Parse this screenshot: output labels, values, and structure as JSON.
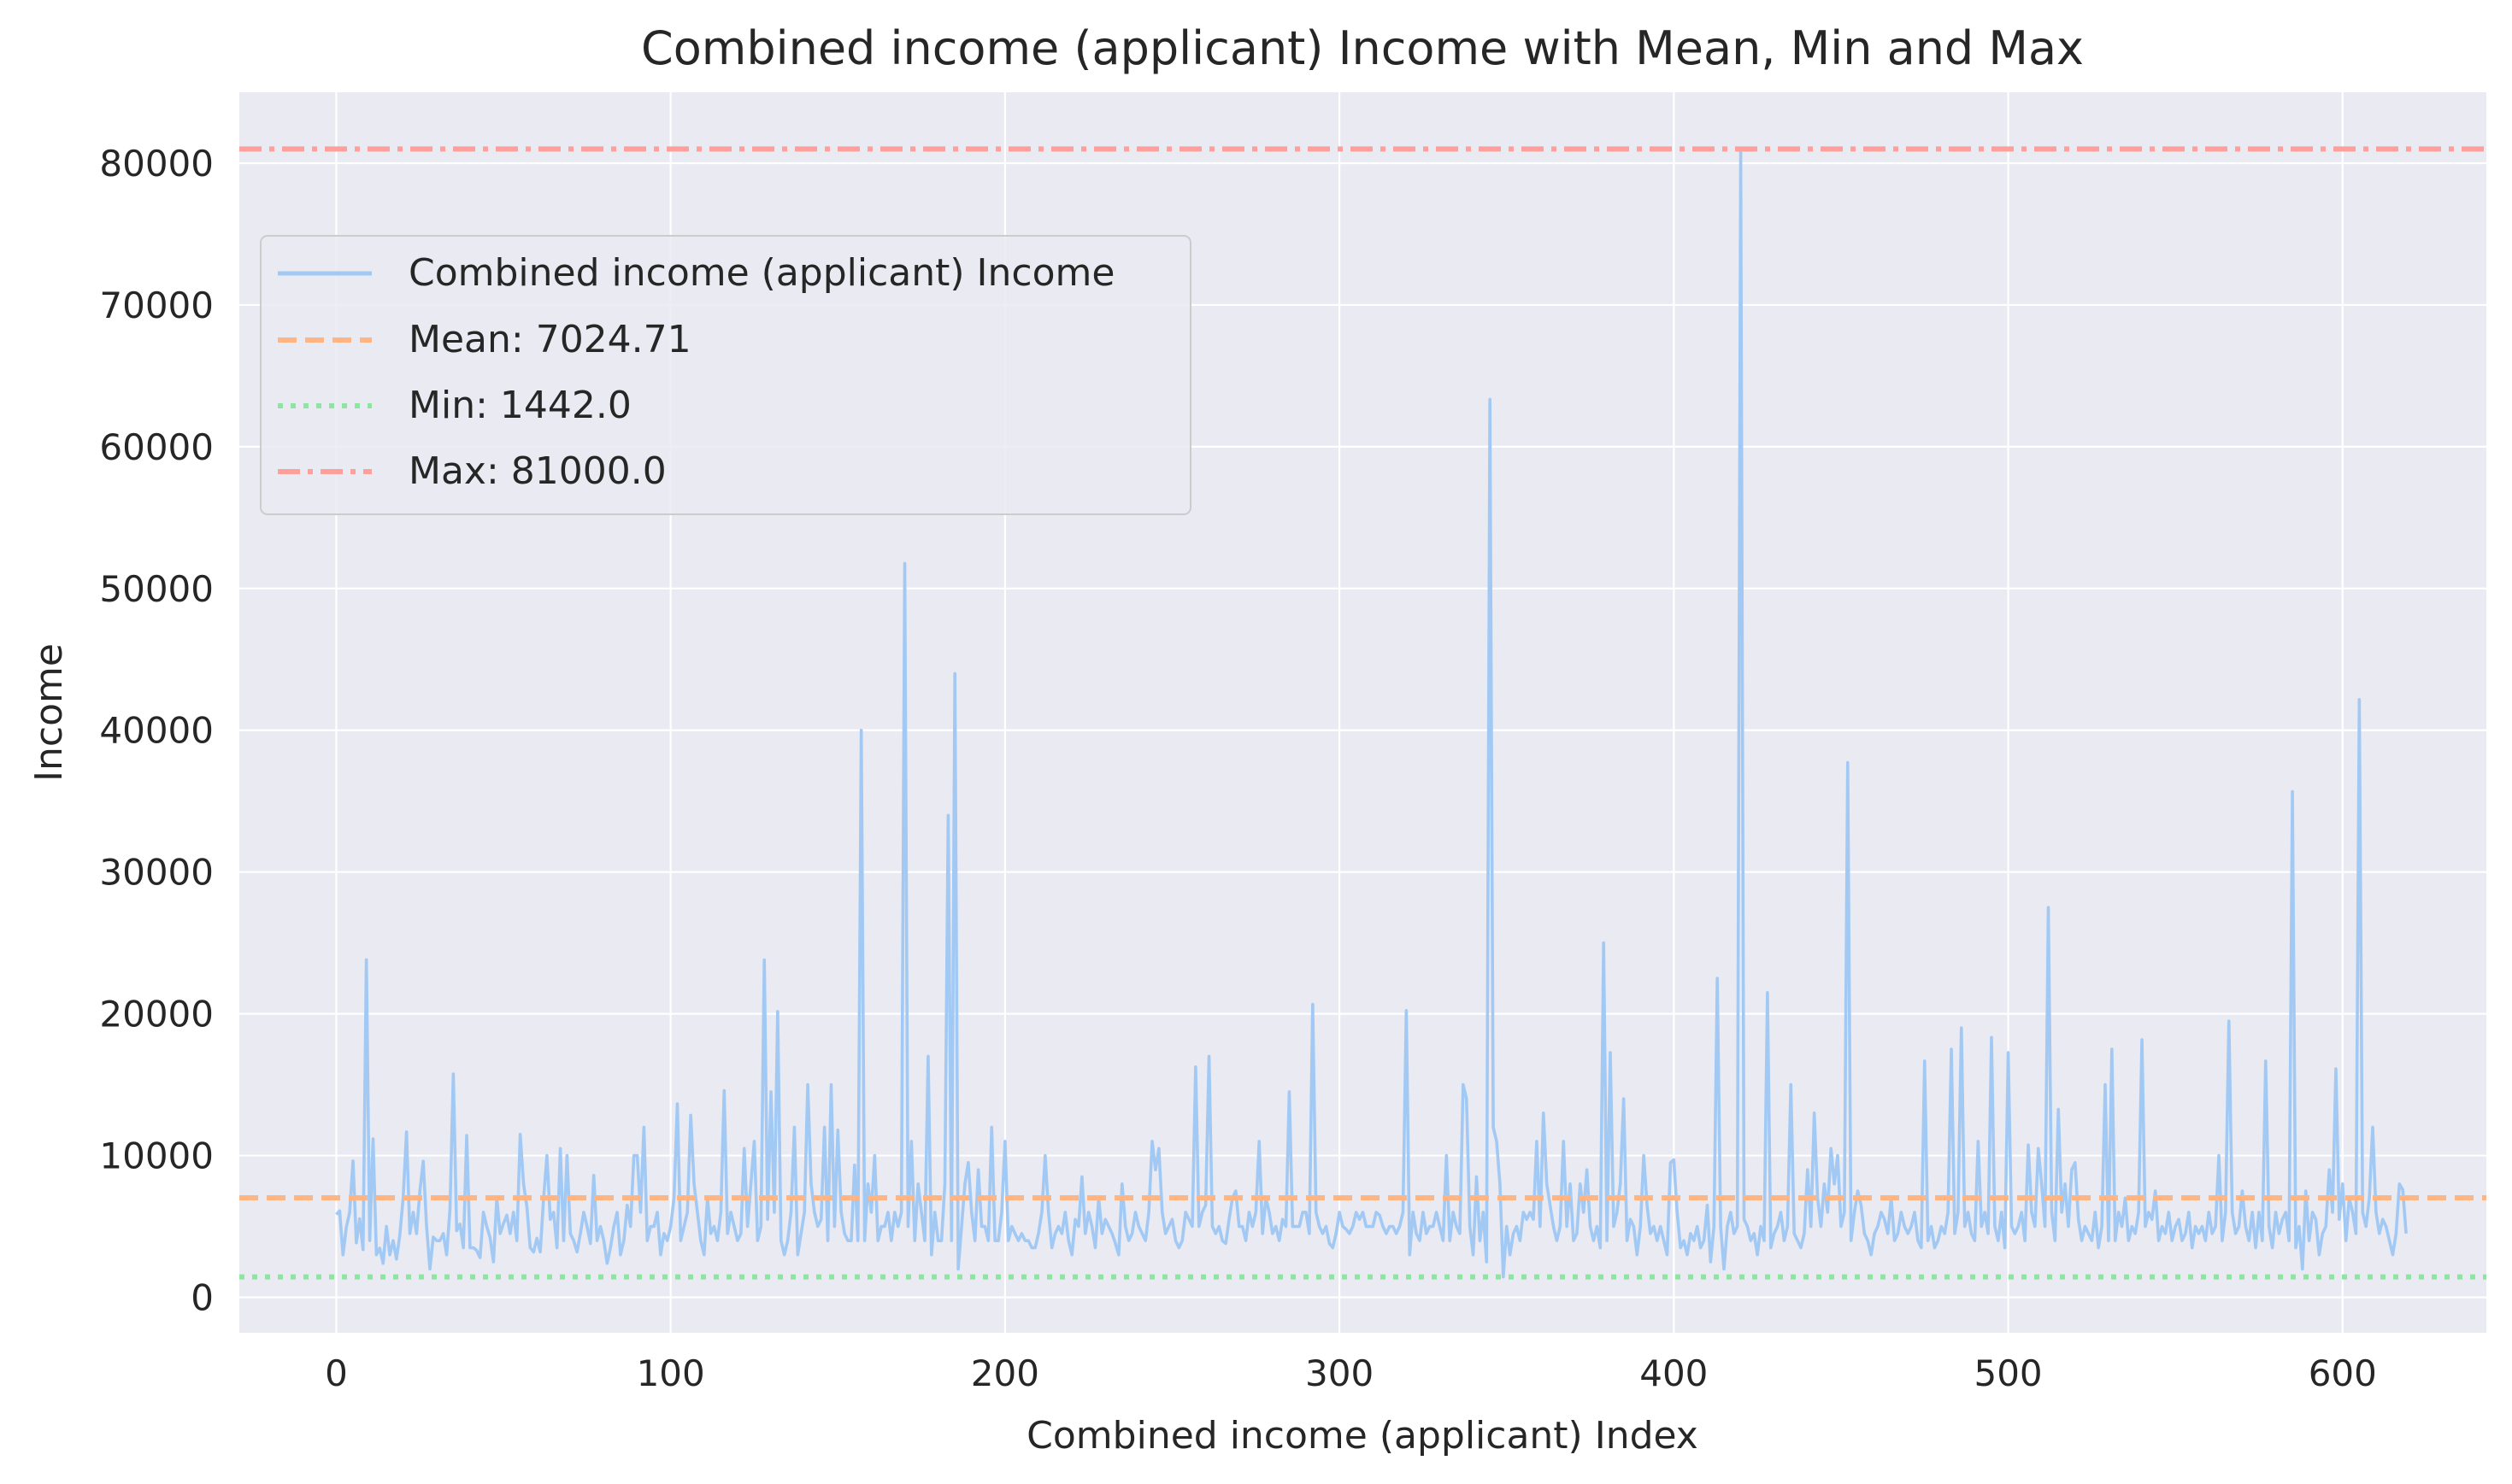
{
  "chart_data": {
    "type": "line",
    "title": "Combined income (applicant) Income with Mean, Min and Max",
    "xlabel": "Combined income (applicant) Index",
    "ylabel": "Income",
    "xlim": [
      -29,
      643
    ],
    "ylim": [
      -2500,
      85000
    ],
    "xticks": [
      0,
      100,
      200,
      300,
      400,
      500,
      600
    ],
    "yticks": [
      0,
      10000,
      20000,
      30000,
      40000,
      50000,
      60000,
      70000,
      80000
    ],
    "grid": true,
    "legend_position": "upper-left",
    "colors": {
      "series": "#a1c9f4",
      "mean": "#ffb482",
      "min": "#8de5a1",
      "max": "#ff9f9b",
      "background": "#eaeaf2",
      "grid": "#ffffff"
    },
    "series": [
      {
        "name": "Combined income (applicant) Income",
        "style": "solid",
        "x_start": 0,
        "x_step": 1,
        "values": [
          5849,
          6091,
          3000,
          4941,
          6000,
          9613,
          3849,
          5540,
          3365,
          23809,
          4006,
          11179,
          3000,
          3467,
          2400,
          5000,
          3000,
          4000,
          2700,
          4400,
          7000,
          11666,
          4500,
          6000,
          4500,
          7500,
          9600,
          5000,
          2000,
          4250,
          4000,
          4000,
          4500,
          3000,
          6200,
          15759,
          4700,
          5166,
          3500,
          11417,
          3500,
          3500,
          3300,
          2800,
          6000,
          5000,
          4200,
          2500,
          7000,
          4500,
          5200,
          5800,
          4500,
          6000,
          4000,
          11500,
          8000,
          6400,
          3500,
          3200,
          4166,
          3200,
          7000,
          10000,
          5500,
          6000,
          3500,
          10500,
          4000,
          10000,
          4500,
          4000,
          3200,
          4500,
          6000,
          5000,
          3800,
          8600,
          4000,
          5000,
          4000,
          2400,
          3500,
          5000,
          6000,
          3000,
          4000,
          6500,
          5000,
          10000,
          10000,
          6000,
          12000,
          4000,
          5000,
          5000,
          6000,
          3000,
          4500,
          4000,
          5000,
          7000,
          13650,
          4000,
          5000,
          6000,
          12841,
          8000,
          6000,
          4000,
          3000,
          7000,
          4500,
          5000,
          4000,
          6000,
          14583,
          4500,
          6000,
          5000,
          4000,
          4500,
          10500,
          5000,
          8000,
          11000,
          4000,
          5000,
          23803,
          5500,
          14500,
          6000,
          20166,
          4000,
          3000,
          4000,
          6000,
          12000,
          3000,
          4500,
          6000,
          15000,
          8000,
          6000,
          5000,
          5500,
          12000,
          4000,
          15000,
          5000,
          11800,
          6000,
          4500,
          4000,
          4000,
          9323,
          4000,
          40000,
          4000,
          8000,
          6000,
          10000,
          4000,
          5000,
          5000,
          6000,
          4000,
          6000,
          5000,
          6000,
          51763,
          5000,
          11000,
          4000,
          8000,
          6000,
          4000,
          17000,
          3000,
          6000,
          4000,
          4000,
          8000,
          34000,
          4000,
          44000,
          2000,
          5000,
          8000,
          9500,
          6000,
          4000,
          9000,
          5000,
          5000,
          4000,
          12000,
          4000,
          4000,
          6000,
          11000,
          4000,
          5000,
          4500,
          4000,
          4500,
          4000,
          4000,
          3500,
          3500,
          4500,
          6000,
          10000,
          6000,
          3500,
          4500,
          5000,
          4500,
          6000,
          4000,
          3000,
          5500,
          5000,
          8500,
          4500,
          6000,
          5000,
          3500,
          7000,
          4500,
          5500,
          5000,
          4500,
          3800,
          3000,
          8000,
          5000,
          4000,
          4500,
          6000,
          5000,
          4500,
          4000,
          6000,
          11000,
          9000,
          10500,
          6000,
          4500,
          5000,
          5500,
          4000,
          3500,
          4000,
          6000,
          5500,
          5000,
          16250,
          5000,
          6000,
          6500,
          17000,
          5000,
          4500,
          5000,
          4000,
          3800,
          5500,
          7000,
          7500,
          5000,
          5000,
          4000,
          6000,
          5000,
          6000,
          11000,
          4500,
          7000,
          6000,
          4500,
          5000,
          4000,
          5500,
          5000,
          14500,
          5000,
          5000,
          5000,
          6000,
          6000,
          4500,
          20667,
          6000,
          5000,
          4500,
          5000,
          3800,
          3500,
          4500,
          6000,
          5000,
          4800,
          4500,
          5000,
          6000,
          5500,
          6000,
          5000,
          5000,
          5000,
          6000,
          5800,
          5000,
          4500,
          5000,
          5000,
          4500,
          5000,
          6000,
          20233,
          3000,
          6000,
          4500,
          4000,
          6000,
          4500,
          5000,
          5000,
          6000,
          5000,
          4000,
          10000,
          4000,
          6000,
          5000,
          4500,
          15000,
          14000,
          5000,
          3000,
          8500,
          4000,
          6000,
          2500,
          63337,
          12000,
          11000,
          8000,
          1442,
          5000,
          3000,
          4500,
          5000,
          4000,
          6000,
          5500,
          6000,
          5500,
          11000,
          5000,
          13000,
          8000,
          6500,
          5000,
          4000,
          5000,
          11000,
          5000,
          8000,
          4000,
          4500,
          8000,
          6000,
          9000,
          5000,
          4000,
          5000,
          3500,
          25000,
          4000,
          17263,
          5000,
          6000,
          8000,
          14000,
          4000,
          5500,
          5000,
          3000,
          5000,
          10000,
          6500,
          4500,
          5000,
          4000,
          5000,
          4000,
          3000,
          9500,
          9703,
          6000,
          3500,
          4000,
          3000,
          4500,
          4000,
          5000,
          3500,
          4000,
          6500,
          2500,
          5000,
          22500,
          5000,
          2000,
          5000,
          6000,
          4500,
          5000,
          81000,
          5500,
          5000,
          4000,
          4500,
          3000,
          5000,
          4000,
          21500,
          3500,
          4500,
          5000,
          6000,
          4000,
          5000,
          15000,
          4500,
          4000,
          3500,
          4500,
          9000,
          5000,
          13000,
          7000,
          5000,
          8000,
          6000,
          10500,
          8000,
          10000,
          5000,
          6000,
          37719,
          4000,
          6000,
          7500,
          6500,
          4500,
          4000,
          3000,
          4500,
          5000,
          6000,
          5500,
          4500,
          7000,
          4000,
          4500,
          6000,
          5000,
          4500,
          5000,
          6000,
          4000,
          3500,
          16666,
          4000,
          5000,
          3500,
          4000,
          5000,
          4500,
          6000,
          17500,
          4500,
          6000,
          19000,
          5000,
          6000,
          4500,
          4000,
          11000,
          5000,
          6000,
          4500,
          18333,
          5000,
          4000,
          6000,
          3500,
          17263,
          5000,
          4500,
          5000,
          6000,
          4000,
          10750,
          6000,
          5000,
          10500,
          8000,
          5000,
          27500,
          6000,
          4000,
          13262,
          6000,
          8000,
          5000,
          9000,
          9500,
          5500,
          4000,
          5000,
          4500,
          4000,
          6000,
          3500,
          5000,
          15000,
          4000,
          17500,
          4000,
          6000,
          5000,
          7000,
          4000,
          5000,
          4500,
          6000,
          18165,
          5000,
          6000,
          5500,
          7500,
          4000,
          5000,
          4500,
          6000,
          4000,
          5000,
          5500,
          4000,
          4500,
          6000,
          3500,
          5000,
          4500,
          5000,
          4000,
          6000,
          4500,
          5000,
          10000,
          4000,
          6000,
          19484,
          6000,
          4500,
          5000,
          7500,
          5000,
          4000,
          6000,
          3500,
          6000,
          4000,
          16666,
          5000,
          3500,
          6000,
          4500,
          5500,
          6000,
          4000,
          35673,
          3500,
          5000,
          2000,
          7500,
          4000,
          6000,
          5500,
          3000,
          4500,
          5000,
          9000,
          6000,
          16120,
          5500,
          8000,
          4000,
          7000,
          6000,
          4500,
          42166,
          6000,
          5000,
          7000,
          12000,
          6000,
          4500,
          5500,
          5000,
          4000,
          3000,
          4500,
          8000,
          7583,
          4500
        ]
      },
      {
        "name": "Mean: 7024.71",
        "style": "dashed",
        "constant": 7024.71
      },
      {
        "name": "Min: 1442.0",
        "style": "dotted",
        "constant": 1442.0
      },
      {
        "name": "Max: 81000.0",
        "style": "dashdot",
        "constant": 81000.0
      }
    ]
  }
}
